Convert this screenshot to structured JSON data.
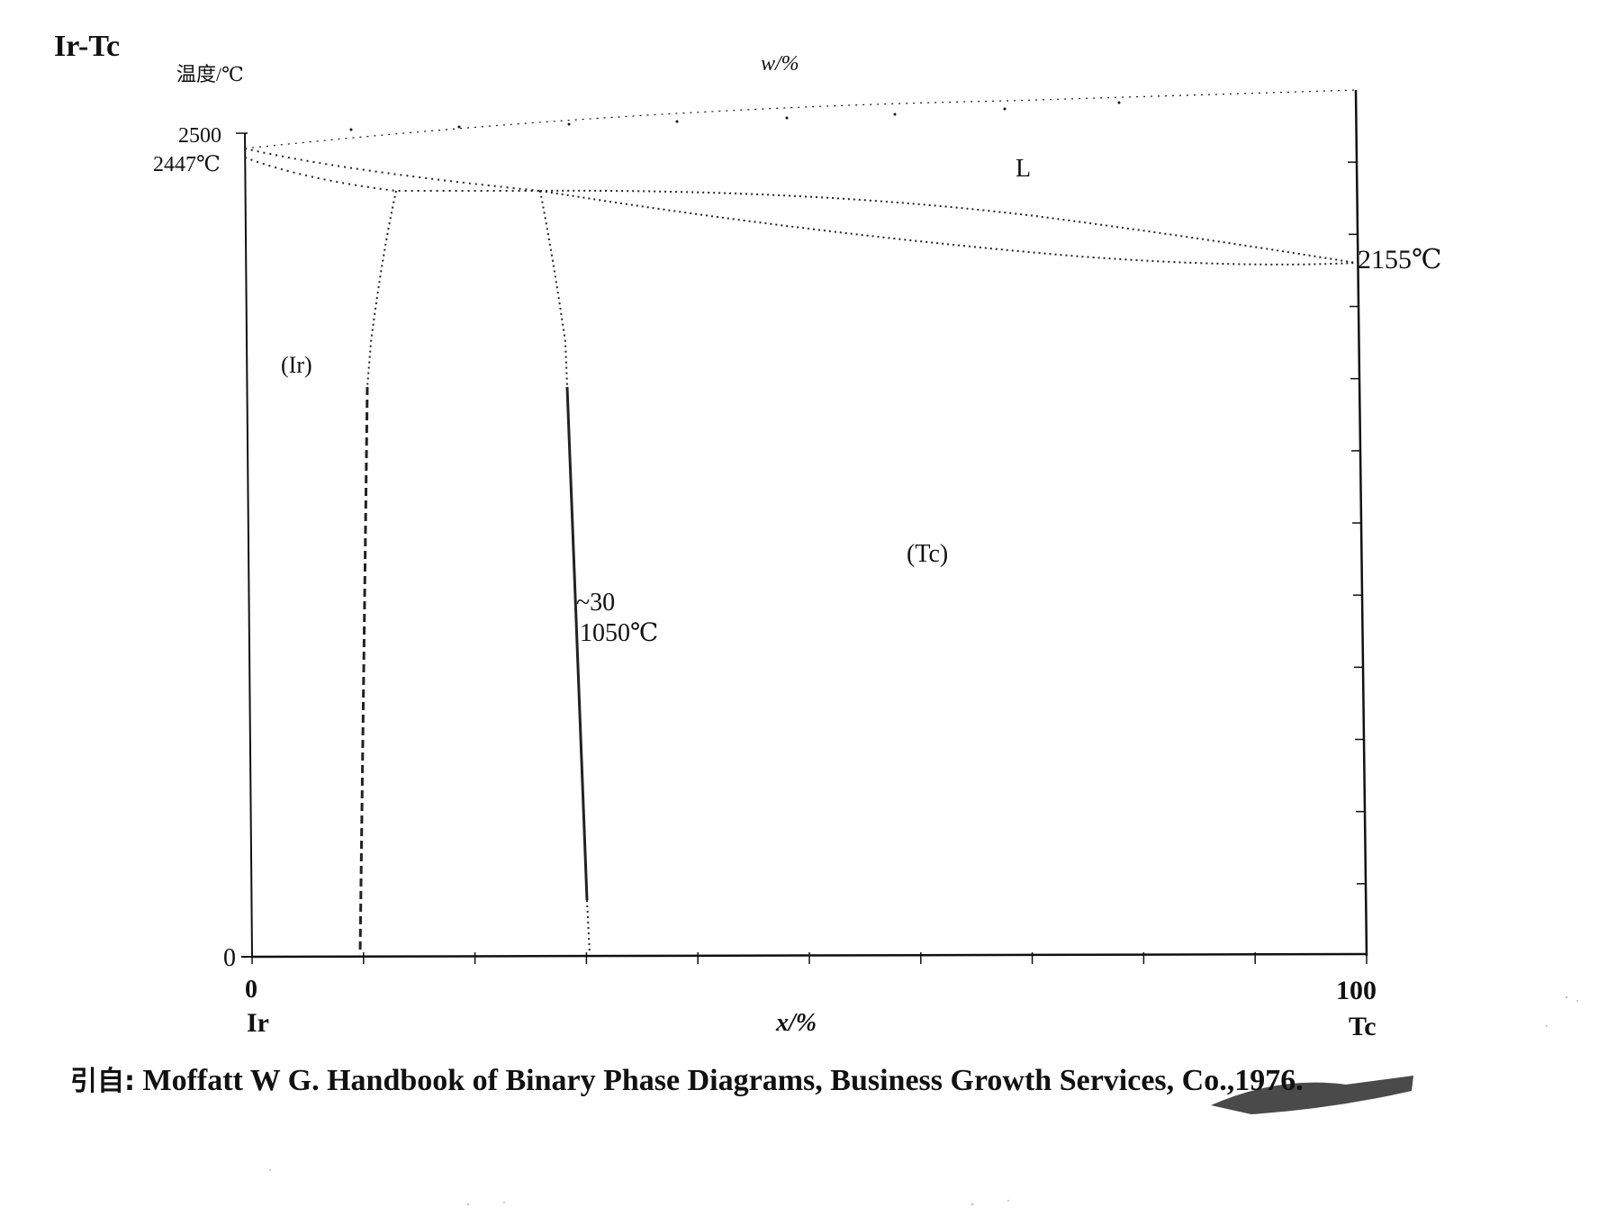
{
  "diagram": {
    "system_label": "Ir-Tc",
    "y_axis_label": "温度/℃",
    "top_axis_label": "w/%",
    "x_axis_label": "x/%",
    "y_ticks": {
      "top_value": "2500",
      "zero": "0"
    },
    "x_ticks": {
      "left_value": "0",
      "right_value": "100"
    },
    "x_end_labels": {
      "left": "Ir",
      "right": "Tc"
    },
    "annotations": {
      "ir_melting": "2447℃",
      "tc_melting": "2155℃",
      "peritectic_comp": "~30",
      "peritectic_temp": "1050℃"
    },
    "phase_regions": {
      "liquid": "L",
      "ir_solid": "(Ir)",
      "tc_solid": "(Tc)"
    }
  },
  "caption": {
    "prefix": "引自:",
    "text": "Moffatt W G. Handbook of Binary Phase Diagrams, Business Growth Services, Co.,1976."
  },
  "chart_data": {
    "type": "phase-diagram",
    "components": [
      "Ir",
      "Tc"
    ],
    "x_unit": "x/%",
    "y_unit": "温度/℃",
    "xlim": [
      0,
      100
    ],
    "melting_points": {
      "Ir": 2447,
      "Tc": 2155
    },
    "annotated_point": {
      "x": 30,
      "temperature": 1050
    },
    "regions": [
      "L",
      "(Ir)",
      "(Tc)"
    ]
  }
}
